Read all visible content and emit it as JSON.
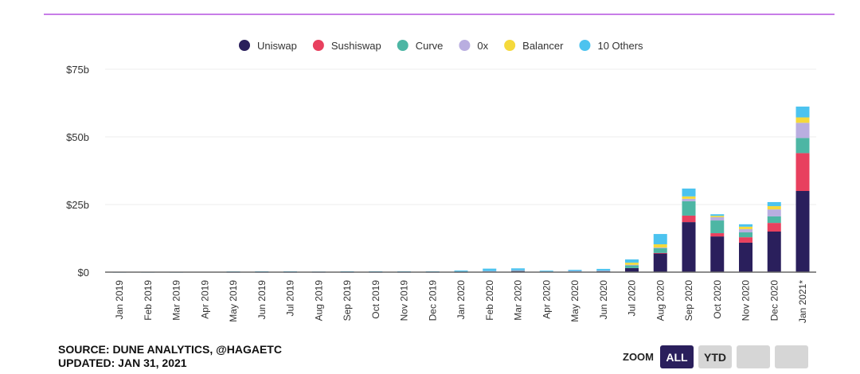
{
  "chart_data": {
    "type": "bar",
    "stacked": true,
    "categories": [
      "Jan 2019",
      "Feb 2019",
      "Mar 2019",
      "Apr 2019",
      "May 2019",
      "Jun 2019",
      "Jul 2019",
      "Aug 2019",
      "Sep 2019",
      "Oct 2019",
      "Nov 2019",
      "Dec 2019",
      "Jan 2020",
      "Feb 2020",
      "Mar 2020",
      "Apr 2020",
      "May 2020",
      "Jun 2020",
      "Jul 2020",
      "Aug 2020",
      "Sep 2020",
      "Oct 2020",
      "Nov 2020",
      "Dec 2020",
      "Jan 2021*"
    ],
    "series": [
      {
        "name": "Uniswap",
        "color": "#2a1f5c",
        "values": [
          0,
          0,
          0,
          0,
          0,
          0,
          0,
          0,
          0,
          0,
          0,
          0,
          0.05,
          0.1,
          0.4,
          0.1,
          0.2,
          0.3,
          1.5,
          7,
          18.5,
          13.2,
          10.9,
          15,
          30
        ]
      },
      {
        "name": "Sushiswap",
        "color": "#e8405e",
        "values": [
          0,
          0,
          0,
          0,
          0,
          0,
          0,
          0,
          0,
          0,
          0,
          0,
          0,
          0,
          0,
          0,
          0,
          0,
          0,
          0.1,
          2.4,
          1.2,
          2,
          3.2,
          14
        ]
      },
      {
        "name": "Curve",
        "color": "#4db6a4",
        "values": [
          0,
          0,
          0,
          0,
          0,
          0,
          0,
          0,
          0,
          0,
          0,
          0,
          0.1,
          0.2,
          0.2,
          0.1,
          0.2,
          0.2,
          1,
          1.8,
          5.3,
          4.7,
          1.8,
          2.4,
          5.6
        ]
      },
      {
        "name": "0x",
        "color": "#b9aee0",
        "values": [
          0,
          0,
          0,
          0,
          0.02,
          0.02,
          0.02,
          0.02,
          0.02,
          0.02,
          0.02,
          0.02,
          0.05,
          0.1,
          0.1,
          0.05,
          0.05,
          0.1,
          0.2,
          0.2,
          0.9,
          1.2,
          1.2,
          2.6,
          5.6
        ]
      },
      {
        "name": "Balancer",
        "color": "#f5d93b",
        "values": [
          0,
          0,
          0,
          0,
          0,
          0,
          0,
          0,
          0,
          0,
          0,
          0,
          0,
          0,
          0,
          0,
          0,
          0,
          0.8,
          1.2,
          0.9,
          0.5,
          0.9,
          1.2,
          2
        ]
      },
      {
        "name": "10 Others",
        "color": "#4cc3ef",
        "values": [
          0.05,
          0.05,
          0.05,
          0.1,
          0.25,
          0.3,
          0.3,
          0.2,
          0.3,
          0.3,
          0.3,
          0.3,
          0.4,
          0.9,
          0.7,
          0.3,
          0.4,
          0.6,
          1.2,
          3.8,
          2.9,
          0.6,
          0.9,
          1.5,
          4
        ]
      }
    ],
    "yticks": [
      "$0",
      "$25b",
      "$50b",
      "$75b"
    ],
    "ytick_values": [
      0,
      25,
      50,
      75
    ],
    "ylim": [
      0,
      75
    ],
    "grid": true,
    "legend_placement": "top"
  },
  "footer": {
    "source_line": "SOURCE: DUNE ANALYTICS, @HAGAETC",
    "updated_line": "UPDATED: JAN 31, 2021",
    "zoom_label": "ZOOM",
    "zoom_buttons": [
      "ALL",
      "YTD",
      "",
      ""
    ],
    "active_zoom": "ALL"
  }
}
